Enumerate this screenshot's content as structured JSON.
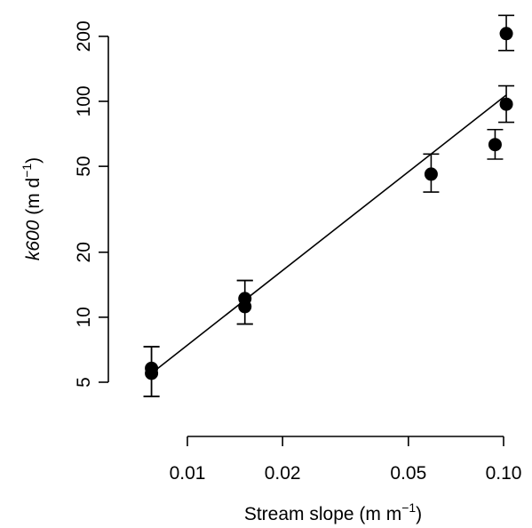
{
  "chart_data": {
    "type": "scatter",
    "xscale": "log",
    "yscale": "log",
    "xlabel": {
      "main": "Stream slope (m m",
      "sup": "−1",
      "close": ")"
    },
    "ylabel": {
      "italic": "k600",
      "main": " (m d",
      "sup": "−1",
      "close": ")"
    },
    "xticks": [
      {
        "value": 0.01,
        "label": "0.01"
      },
      {
        "value": 0.02,
        "label": "0.02"
      },
      {
        "value": 0.05,
        "label": "0.05"
      },
      {
        "value": 0.1,
        "label": "0.10"
      }
    ],
    "yticks": [
      {
        "value": 5,
        "label": "5"
      },
      {
        "value": 10,
        "label": "10"
      },
      {
        "value": 20,
        "label": "20"
      },
      {
        "value": 50,
        "label": "50"
      },
      {
        "value": 100,
        "label": "100"
      },
      {
        "value": 200,
        "label": "200"
      }
    ],
    "xlim": [
      0.0075,
      0.105
    ],
    "ylim": [
      4.7,
      260
    ],
    "points": [
      {
        "x": 0.0077,
        "y": 5.8,
        "lo": 4.3,
        "hi": 7.3
      },
      {
        "x": 0.0077,
        "y": 5.5,
        "lo": 4.3,
        "hi": 7.3
      },
      {
        "x": 0.0152,
        "y": 12.2,
        "lo": 9.3,
        "hi": 14.8
      },
      {
        "x": 0.0152,
        "y": 11.2,
        "lo": 9.3,
        "hi": 14.8
      },
      {
        "x": 0.059,
        "y": 46,
        "lo": 38,
        "hi": 57
      },
      {
        "x": 0.094,
        "y": 63,
        "lo": 54,
        "hi": 74
      },
      {
        "x": 0.102,
        "y": 97,
        "lo": 80,
        "hi": 118
      },
      {
        "x": 0.102,
        "y": 206,
        "lo": 172,
        "hi": 250
      }
    ],
    "fit": {
      "x1": 0.0077,
      "y1": 5.5,
      "x2": 0.102,
      "y2": 107
    }
  }
}
